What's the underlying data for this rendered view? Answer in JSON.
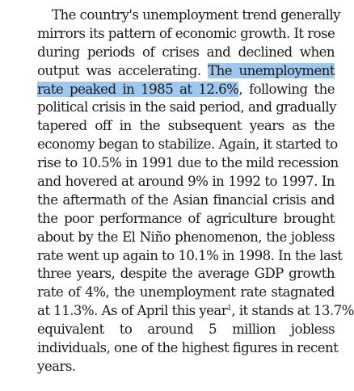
{
  "paragraph": {
    "lines": [
      "The country's unemployment trend generally",
      "mirrors its pattern of economic growth. It rose",
      "during periods of crises and declined when",
      null,
      null,
      "political crisis in the said period, and gradually",
      "tapered off in the subsequent years as the",
      "economy began to stabilize. Again, it started to",
      "rise to 10.5% in 1991 due to the mild recession",
      "and hovered at around 9% in 1992 to 1997. In",
      "the aftermath of the Asian financial crisis and",
      "the poor performance of agriculture brought",
      "about by the El Niño phenomenon, the jobless",
      "rate went up again to 10.1% in 1998. In the last",
      "three years, despite the average GDP growth",
      "rate of 4%, the unemployment rate stagnated",
      null,
      "equivalent to around 5 million jobless",
      "individuals, one of the highest figures in recent",
      "years."
    ],
    "line4_before": "output was accelerating. ",
    "line4_highlight": "The unemployment",
    "line5_highlight": "rate peaked in 1985 at 12.6%",
    "line5_after": ", following the",
    "line17_before": "at 11.3%.  As of April this year",
    "footnote_mark": "1",
    "line17_after": ", it stands at 13.7%"
  },
  "colors": {
    "selection_highlight": "#9ec8ef",
    "text": "#1a1a1a"
  }
}
